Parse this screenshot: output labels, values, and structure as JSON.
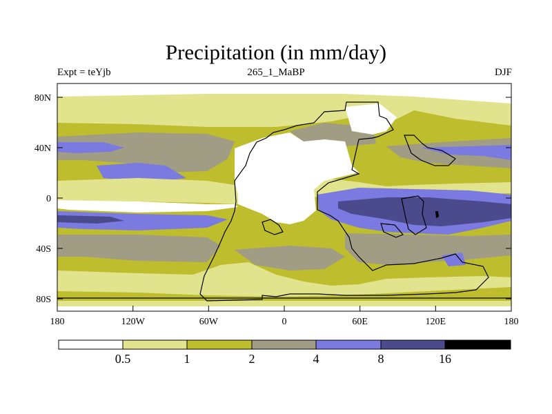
{
  "title": "Precipitation (in mm/day)",
  "left_label": "Expt = teYjb",
  "center_label": "265_1_MaBP",
  "right_label": "DJF",
  "lat_ticks": [
    "80N",
    "40N",
    "0",
    "40S",
    "80S"
  ],
  "lon_ticks": [
    "180",
    "120W",
    "60W",
    "0",
    "60E",
    "120E",
    "180"
  ],
  "legend_labels": [
    "0.5",
    "1",
    "2",
    "4",
    "8",
    "16"
  ],
  "legend_colors": [
    "#ffffff",
    "#e2e38d",
    "#bdbd2d",
    "#a09d84",
    "#7a7ae0",
    "#4a4a8c",
    "#000000"
  ],
  "colors": {
    "c0": "#ffffff",
    "c1": "#e2e38d",
    "c2": "#bdbd2d",
    "c3": "#a09d84",
    "c4": "#7a7ae0",
    "c5": "#4a4a8c",
    "c6": "#000000"
  }
}
